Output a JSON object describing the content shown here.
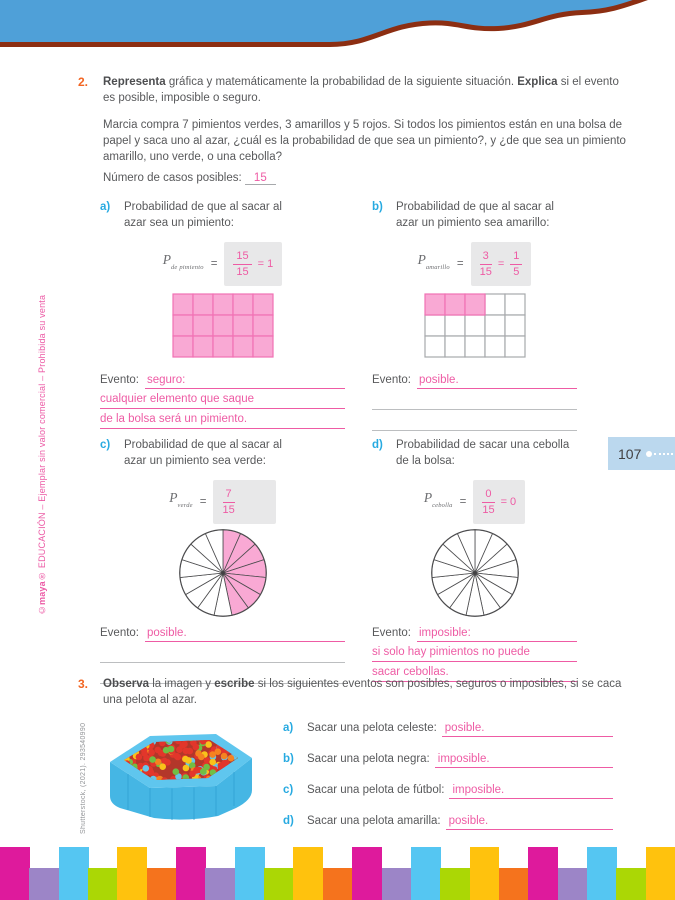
{
  "sidebar": {
    "copyright_symbol": "©",
    "brand": "maya",
    "rest": "® EDUCACIÓN – Ejemplar sin valor comercial – Prohibida su venta"
  },
  "page_badge": {
    "number": "107"
  },
  "q2": {
    "number": "2.",
    "intro": {
      "bold1": "Representa",
      "text1": " gráfica y matemáticamente la probabilidad de la siguiente situación. ",
      "bold2": "Explica",
      "text2": " si el evento es posible, imposible o seguro."
    },
    "paragraph": "Marcia compra 7 pimientos verdes, 3 amarillos y 5 rojos. Si todos los pimientos están en una bolsa de papel y saca uno al azar, ¿cuál es la probabilidad de que sea un pimiento?, y ¿de que sea un pimiento amarillo, uno verde, o una cebolla?",
    "cases_label": "Número de casos posibles:",
    "cases_value": "15",
    "items": {
      "a": {
        "letter": "a)",
        "prompt": "Probabilidad de que al sacar al azar sea un pimiento:",
        "p_symbol": "P",
        "p_sub": "de pimiento",
        "equals": "=",
        "frac1_num": "15",
        "frac1_den": "15",
        "suffix": "= 1",
        "evento_label": "Evento:",
        "answer": "seguro:",
        "answer_lines": [
          "cualquier elemento que saque",
          "de la bolsa será un pimiento."
        ]
      },
      "b": {
        "letter": "b)",
        "prompt": "Probabilidad de que al sacar al azar un pimiento sea amarillo:",
        "p_symbol": "P",
        "p_sub": "amarillo",
        "equals": "=",
        "frac1_num": "3",
        "frac1_den": "15",
        "mid_equals": "=",
        "frac2_num": "1",
        "frac2_den": "5",
        "evento_label": "Evento:",
        "answer": "posible."
      },
      "c": {
        "letter": "c)",
        "prompt": "Probabilidad de que al sacar al azar un pimiento sea verde:",
        "p_symbol": "P",
        "p_sub": "verde",
        "equals": "=",
        "frac1_num": "7",
        "frac1_den": "15",
        "evento_label": "Evento:",
        "answer": "posible."
      },
      "d": {
        "letter": "d)",
        "prompt": "Probabilidad de sacar una cebolla de la bolsa:",
        "p_symbol": "P",
        "p_sub": "cebolla",
        "equals": "=",
        "frac1_num": "0",
        "frac1_den": "15",
        "suffix": "= 0",
        "evento_label": "Evento:",
        "answer": "imposible:",
        "answer_lines": [
          "si solo hay pimientos no puede",
          "sacar cebollas."
        ]
      }
    }
  },
  "q3": {
    "number": "3.",
    "intro": {
      "bold1": "Observa",
      "text1": " la imagen y ",
      "bold2": "escribe",
      "text2": " si los siguientes eventos son posibles, seguros o imposibles, si se caca una pelota al azar."
    },
    "credit": "Shutterstock, (2021). 293540990",
    "items": [
      {
        "letter": "a)",
        "text": "Sacar una pelota celeste:",
        "answer": "posible."
      },
      {
        "letter": "b)",
        "text": "Sacar una pelota negra:",
        "answer": "imposible."
      },
      {
        "letter": "c)",
        "text": "Sacar una pelota de fútbol:",
        "answer": "imposible."
      },
      {
        "letter": "d)",
        "text": "Sacar una pelota amarilla:",
        "answer": "posible."
      }
    ]
  },
  "diagrams": {
    "grid_a": {
      "rows": 3,
      "cols": 5,
      "filled": 15
    },
    "grid_b": {
      "rows": 3,
      "cols": 5,
      "filled": 3
    },
    "pie_c": {
      "slices": 15,
      "filled": 7
    },
    "pie_d": {
      "slices": 15,
      "filled": 0
    },
    "colors": {
      "pink_fill": "#F9A9D4",
      "pink_border": "#F171B4",
      "gray_border": "#A7A9AC",
      "slice_stroke": "#4D4D4F"
    }
  },
  "header": {
    "blue": "#4FA0D8",
    "brown": "#8C2E12"
  },
  "ballpit": {
    "wall": "#45B6E4",
    "rim": "#5FC6EE",
    "panel_line": "#2E9FD2",
    "base": "#B3372A",
    "ball_palette": [
      {
        "c": "#E2362B",
        "w": 0.52
      },
      {
        "c": "#F9C21A",
        "w": 0.18
      },
      {
        "c": "#71BE44",
        "w": 0.12
      },
      {
        "c": "#66C6E9",
        "w": 0.1
      },
      {
        "c": "#F58220",
        "w": 0.08
      }
    ]
  },
  "footer": {
    "bar_count": 23,
    "palette": [
      "#DE1A9C",
      "#9C85C7",
      "#55C6F2",
      "#ABD705",
      "#FFC20D",
      "#F5731D"
    ]
  }
}
